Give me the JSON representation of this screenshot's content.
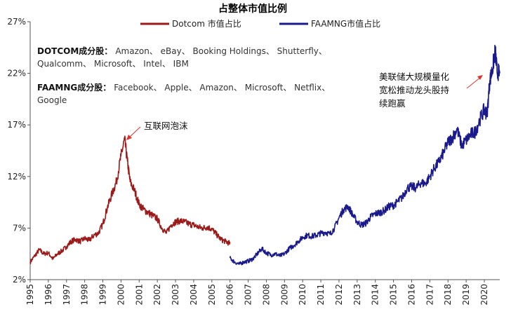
{
  "chart_data": {
    "type": "line",
    "title": "占整体市值比例",
    "xlabel": "",
    "ylabel": "",
    "x_ticks": [
      "1995",
      "1996",
      "1997",
      "1998",
      "1999",
      "2000",
      "2001",
      "2002",
      "2003",
      "2004",
      "2005",
      "2006",
      "2007",
      "2008",
      "2009",
      "2010",
      "2011",
      "2012",
      "2013",
      "2014",
      "2015",
      "2016",
      "2017",
      "2018",
      "2019",
      "2020"
    ],
    "y_ticks": [
      "2%",
      "7%",
      "12%",
      "17%",
      "22%",
      "27%"
    ],
    "xlim": [
      1995.0,
      2020.85
    ],
    "ylim": [
      2,
      27
    ],
    "grid": false,
    "legend_position": "top",
    "series": [
      {
        "name": "Dotcom 市值占比",
        "color": "#9b1b1b",
        "points": [
          [
            1995.0,
            3.7
          ],
          [
            1995.25,
            4.3
          ],
          [
            1995.5,
            4.9
          ],
          [
            1995.75,
            4.5
          ],
          [
            1996.0,
            4.6
          ],
          [
            1996.25,
            4.0
          ],
          [
            1996.5,
            4.5
          ],
          [
            1996.75,
            4.8
          ],
          [
            1997.0,
            5.2
          ],
          [
            1997.25,
            5.7
          ],
          [
            1997.5,
            5.9
          ],
          [
            1997.75,
            5.7
          ],
          [
            1998.0,
            6.0
          ],
          [
            1998.25,
            5.8
          ],
          [
            1998.5,
            6.3
          ],
          [
            1998.75,
            6.5
          ],
          [
            1999.0,
            7.4
          ],
          [
            1999.25,
            9.0
          ],
          [
            1999.5,
            10.3
          ],
          [
            1999.75,
            11.5
          ],
          [
            2000.0,
            14.0
          ],
          [
            2000.2,
            15.6
          ],
          [
            2000.35,
            13.5
          ],
          [
            2000.5,
            11.5
          ],
          [
            2000.75,
            10.6
          ],
          [
            2001.0,
            9.3
          ],
          [
            2001.25,
            8.8
          ],
          [
            2001.5,
            8.5
          ],
          [
            2001.75,
            8.2
          ],
          [
            2002.0,
            7.9
          ],
          [
            2002.25,
            7.0
          ],
          [
            2002.5,
            6.5
          ],
          [
            2002.75,
            7.3
          ],
          [
            2003.0,
            7.6
          ],
          [
            2003.25,
            7.7
          ],
          [
            2003.5,
            7.6
          ],
          [
            2003.75,
            7.4
          ],
          [
            2004.0,
            7.3
          ],
          [
            2004.25,
            7.1
          ],
          [
            2004.5,
            7.0
          ],
          [
            2004.75,
            7.1
          ],
          [
            2005.0,
            6.9
          ],
          [
            2005.25,
            6.4
          ],
          [
            2005.5,
            5.9
          ],
          [
            2005.75,
            5.7
          ],
          [
            2006.0,
            5.5
          ]
        ]
      },
      {
        "name": "FAAMNG市值占比",
        "color": "#1a1a8c",
        "points": [
          [
            2006.0,
            4.1
          ],
          [
            2006.25,
            3.7
          ],
          [
            2006.5,
            3.5
          ],
          [
            2006.75,
            3.7
          ],
          [
            2007.0,
            3.8
          ],
          [
            2007.25,
            4.0
          ],
          [
            2007.5,
            4.5
          ],
          [
            2007.75,
            5.0
          ],
          [
            2008.0,
            4.6
          ],
          [
            2008.25,
            4.4
          ],
          [
            2008.5,
            4.5
          ],
          [
            2008.75,
            4.3
          ],
          [
            2009.0,
            4.5
          ],
          [
            2009.25,
            5.0
          ],
          [
            2009.5,
            5.3
          ],
          [
            2009.75,
            5.7
          ],
          [
            2010.0,
            6.1
          ],
          [
            2010.25,
            6.3
          ],
          [
            2010.5,
            6.2
          ],
          [
            2010.75,
            6.3
          ],
          [
            2011.0,
            6.5
          ],
          [
            2011.25,
            6.6
          ],
          [
            2011.5,
            6.4
          ],
          [
            2011.75,
            7.0
          ],
          [
            2012.0,
            8.0
          ],
          [
            2012.25,
            8.8
          ],
          [
            2012.5,
            9.1
          ],
          [
            2012.75,
            8.3
          ],
          [
            2013.0,
            7.6
          ],
          [
            2013.25,
            7.3
          ],
          [
            2013.5,
            7.5
          ],
          [
            2013.75,
            8.1
          ],
          [
            2014.0,
            8.4
          ],
          [
            2014.25,
            8.5
          ],
          [
            2014.5,
            8.7
          ],
          [
            2014.75,
            9.1
          ],
          [
            2015.0,
            9.2
          ],
          [
            2015.25,
            9.6
          ],
          [
            2015.5,
            10.0
          ],
          [
            2015.75,
            10.9
          ],
          [
            2016.0,
            11.0
          ],
          [
            2016.25,
            10.9
          ],
          [
            2016.5,
            11.4
          ],
          [
            2016.75,
            11.3
          ],
          [
            2017.0,
            12.0
          ],
          [
            2017.25,
            12.8
          ],
          [
            2017.5,
            13.4
          ],
          [
            2017.75,
            14.3
          ],
          [
            2018.0,
            15.3
          ],
          [
            2018.25,
            15.8
          ],
          [
            2018.5,
            16.6
          ],
          [
            2018.75,
            15.0
          ],
          [
            2019.0,
            15.5
          ],
          [
            2019.25,
            16.1
          ],
          [
            2019.5,
            16.3
          ],
          [
            2019.75,
            17.5
          ],
          [
            2020.0,
            18.5
          ],
          [
            2020.15,
            18.0
          ],
          [
            2020.3,
            21.3
          ],
          [
            2020.45,
            22.4
          ],
          [
            2020.6,
            24.2
          ],
          [
            2020.7,
            22.2
          ],
          [
            2020.85,
            22.0
          ]
        ]
      }
    ],
    "notes": [
      {
        "bold": "DOTCOM成分股：",
        "text": "Amazon、 eBay、 Booking Holdings、 Shutterfly、",
        "cont": "Qualcomm、 Microsoft、 Intel、 IBM"
      },
      {
        "bold": "FAAMNG成分股：",
        "text": "Facebook、 Apple、 Amazon、 Microsoft、 Netflix、",
        "cont": "Google"
      }
    ],
    "annotations": [
      {
        "text": "互联网泡沫",
        "lines": [
          "互联网泡沫"
        ]
      },
      {
        "text": "美联储大规模量化宽松推动龙头股持续跑赢",
        "lines": [
          "美联储大规模量化",
          "宽松推动龙头股持",
          "续跑赢"
        ]
      }
    ]
  }
}
